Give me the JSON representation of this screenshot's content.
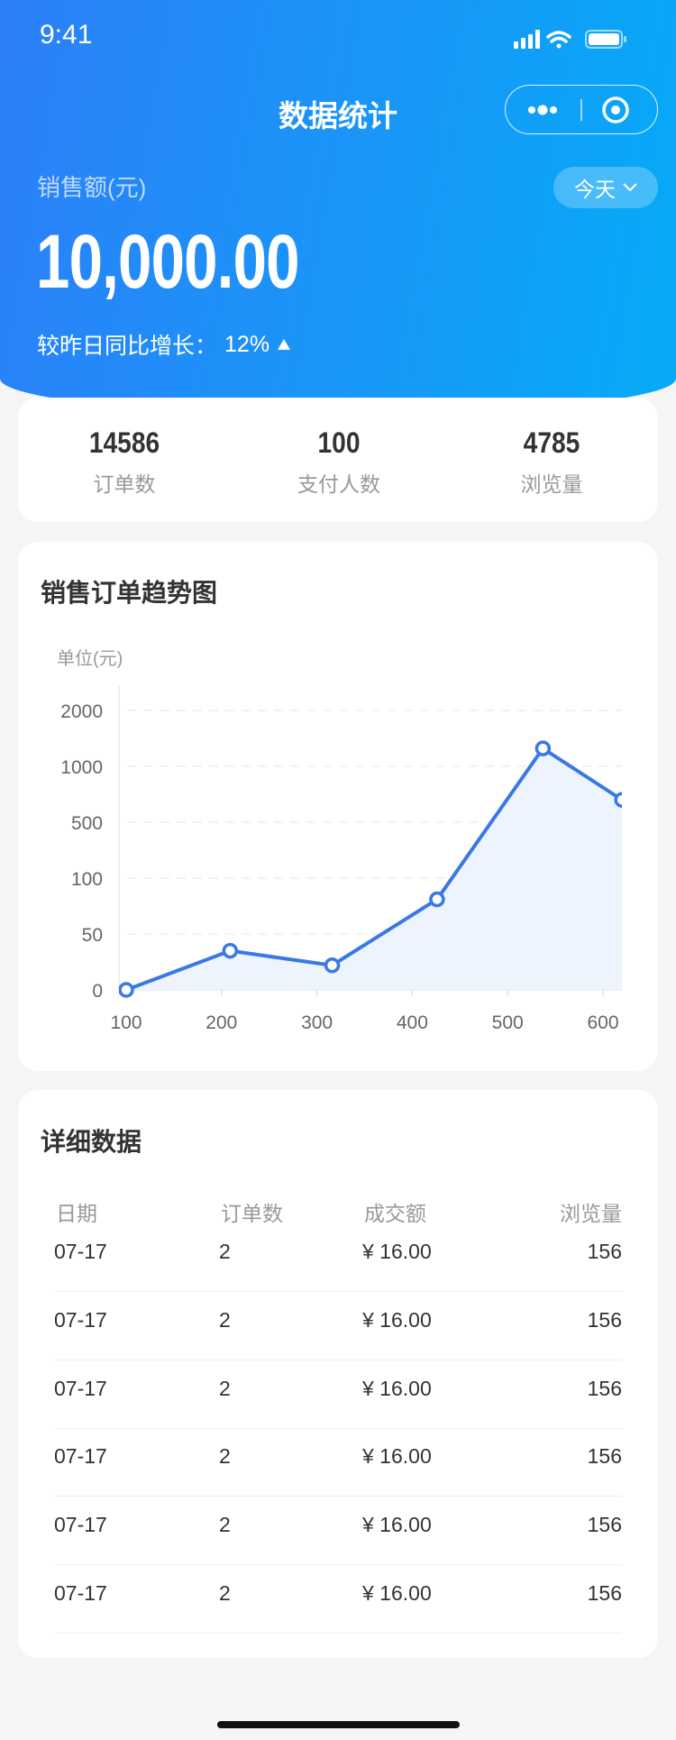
{
  "status_bar": {
    "time": "9:41"
  },
  "header": {
    "title": "数据统计",
    "sales_label": "销售额(元)",
    "period": "今天",
    "amount": "10,000.00",
    "growth_label": "较昨日同比增长：",
    "growth_value": "12%"
  },
  "stats": [
    {
      "value": "14586",
      "label": "订单数"
    },
    {
      "value": "100",
      "label": "支付人数"
    },
    {
      "value": "4785",
      "label": "浏览量"
    }
  ],
  "chart": {
    "title": "销售订单趋势图"
  },
  "chart_data": {
    "type": "area",
    "ylabel": "单位(元)",
    "yticks": [
      "0",
      "50",
      "100",
      "500",
      "1000",
      "2000"
    ],
    "xticks": [
      "100",
      "200",
      "300",
      "400",
      "500",
      "600"
    ],
    "x": [
      100,
      209,
      316,
      426,
      537,
      620
    ],
    "y": [
      0,
      35,
      22,
      81,
      1320,
      700
    ],
    "grid": true,
    "line_color": "#3a78e6",
    "fill_color": "#eef4fd"
  },
  "table": {
    "title": "详细数据",
    "headers": [
      "日期",
      "订单数",
      "成交额",
      "浏览量"
    ],
    "rows": [
      [
        "07-17",
        "2",
        "¥ 16.00",
        "156"
      ],
      [
        "07-17",
        "2",
        "¥ 16.00",
        "156"
      ],
      [
        "07-17",
        "2",
        "¥ 16.00",
        "156"
      ],
      [
        "07-17",
        "2",
        "¥ 16.00",
        "156"
      ],
      [
        "07-17",
        "2",
        "¥ 16.00",
        "156"
      ],
      [
        "07-17",
        "2",
        "¥ 16.00",
        "156"
      ]
    ]
  }
}
